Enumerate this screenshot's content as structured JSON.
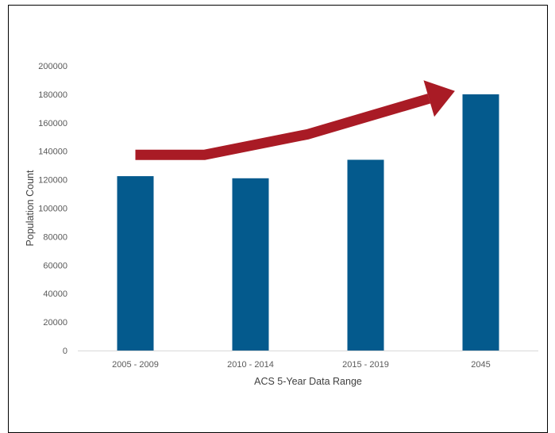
{
  "chart_data": {
    "type": "bar",
    "categories": [
      "2005 - 2009",
      "2010 - 2014",
      "2015 - 2019",
      "2045"
    ],
    "values": [
      122500,
      121000,
      134000,
      180000
    ],
    "xlabel": "ACS 5-Year Data Range",
    "ylabel": "Population Count",
    "ylim": [
      0,
      200000
    ],
    "yticks": [
      0,
      20000,
      40000,
      60000,
      80000,
      100000,
      120000,
      140000,
      160000,
      180000,
      200000
    ],
    "grid": false,
    "legend": "none",
    "colors": {
      "bar": "#045A8D",
      "trend_arrow": "#A91B25",
      "axis": "#D9D9D9"
    },
    "annotations": [
      {
        "type": "trend-arrow",
        "description": "upward trend",
        "path_values": [
          {
            "category_index": 0,
            "value": 137500
          },
          {
            "category_index": 0.6,
            "value": 137500
          },
          {
            "category_index": 1.5,
            "value": 152000
          },
          {
            "category_index": 2.55,
            "value": 177000
          }
        ]
      }
    ]
  }
}
